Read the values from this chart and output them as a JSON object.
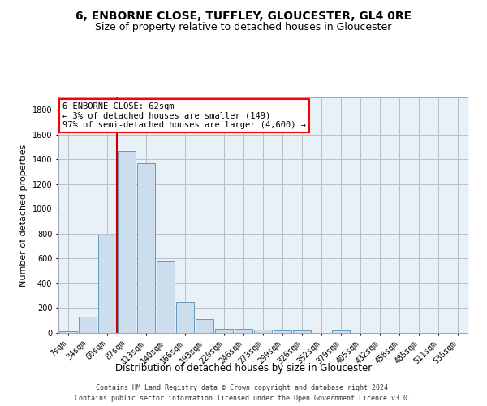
{
  "title": "6, ENBORNE CLOSE, TUFFLEY, GLOUCESTER, GL4 0RE",
  "subtitle": "Size of property relative to detached houses in Gloucester",
  "xlabel": "Distribution of detached houses by size in Gloucester",
  "ylabel": "Number of detached properties",
  "categories": [
    "7sqm",
    "34sqm",
    "60sqm",
    "87sqm",
    "113sqm",
    "140sqm",
    "166sqm",
    "193sqm",
    "220sqm",
    "246sqm",
    "273sqm",
    "299sqm",
    "326sqm",
    "352sqm",
    "379sqm",
    "405sqm",
    "432sqm",
    "458sqm",
    "485sqm",
    "511sqm",
    "538sqm"
  ],
  "values": [
    15,
    130,
    795,
    1470,
    1370,
    575,
    250,
    110,
    35,
    30,
    28,
    18,
    18,
    0,
    20,
    0,
    0,
    0,
    0,
    0,
    0
  ],
  "bar_color": "#ccdded",
  "bar_edge_color": "#6699bb",
  "vline_color": "#cc0000",
  "vline_x_index": 2.5,
  "ylim": [
    0,
    1900
  ],
  "yticks": [
    0,
    200,
    400,
    600,
    800,
    1000,
    1200,
    1400,
    1600,
    1800
  ],
  "annotation_box_text": "6 ENBORNE CLOSE: 62sqm\n← 3% of detached houses are smaller (149)\n97% of semi-detached houses are larger (4,600) →",
  "footer_line1": "Contains HM Land Registry data © Crown copyright and database right 2024.",
  "footer_line2": "Contains public sector information licensed under the Open Government Licence v3.0.",
  "background_color": "#e8f0f8",
  "grid_color": "#bbbbcc",
  "title_fontsize": 10,
  "subtitle_fontsize": 9,
  "tick_fontsize": 7,
  "ylabel_fontsize": 8,
  "xlabel_fontsize": 8.5,
  "footer_fontsize": 6,
  "annot_fontsize": 7.5
}
